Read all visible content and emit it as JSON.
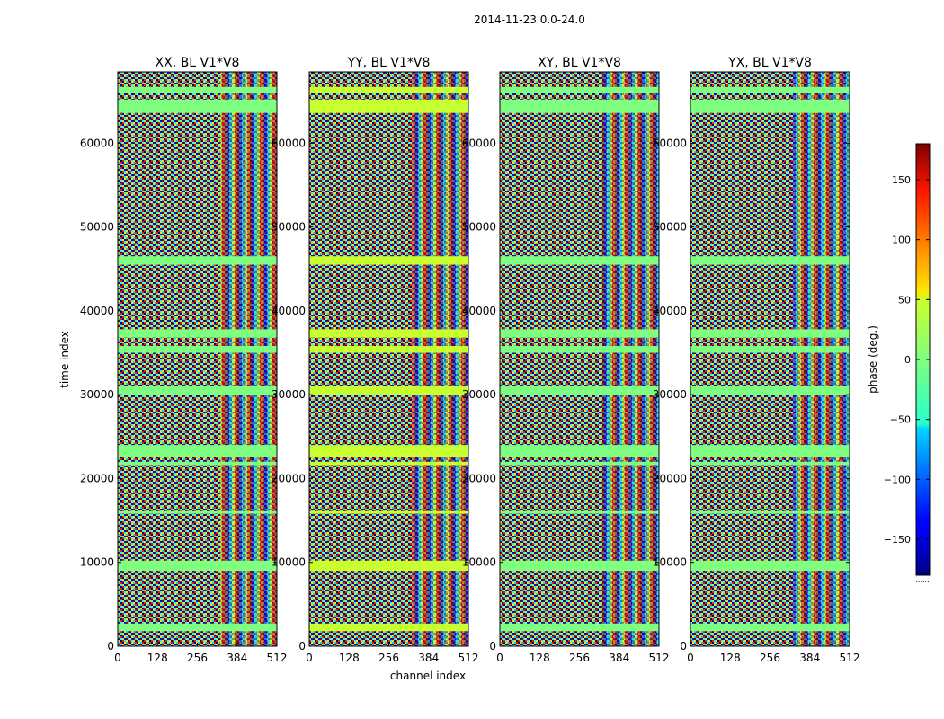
{
  "figure": {
    "suptitle": "2014-11-23 0.0-24.0",
    "xlabel": "channel index",
    "ylabel": "time index",
    "cbar_label": "phase (deg.)",
    "cbar_note": "......"
  },
  "chart_data": {
    "type": "heatmap",
    "colormap": "jet",
    "panels": [
      {
        "title": "XX, BL V1*V8",
        "flag_color": "#7fff7f"
      },
      {
        "title": "YY, BL V1*V8",
        "flag_color": "#c8ff30"
      },
      {
        "title": "XY, BL V1*V8",
        "flag_color": "#7fff7f"
      },
      {
        "title": "YX, BL V1*V8",
        "flag_color": "#7fff7f"
      }
    ],
    "xlim": [
      0,
      512
    ],
    "xticks": [
      0,
      128,
      256,
      384,
      512
    ],
    "ylim": [
      0,
      68500
    ],
    "yticks": [
      0,
      10000,
      20000,
      30000,
      40000,
      50000,
      60000
    ],
    "clim": [
      -180,
      180
    ],
    "cticks": [
      -150,
      -100,
      -50,
      0,
      50,
      100,
      150
    ],
    "flagged_time_bands": [
      [
        1800,
        2700
      ],
      [
        9000,
        10200
      ],
      [
        15800,
        16100
      ],
      [
        21600,
        22000
      ],
      [
        22600,
        24000
      ],
      [
        30000,
        31000
      ],
      [
        35000,
        35800
      ],
      [
        36800,
        37800
      ],
      [
        45500,
        46500
      ],
      [
        63600,
        65200
      ],
      [
        66000,
        66700
      ]
    ]
  }
}
